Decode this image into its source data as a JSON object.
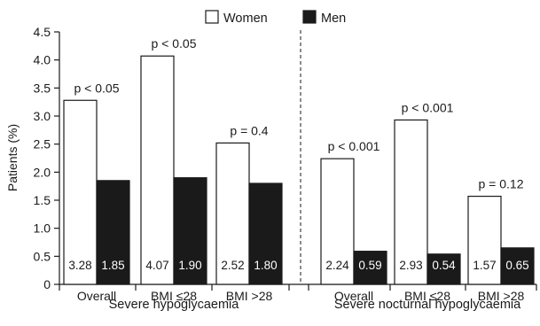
{
  "chart_data": {
    "type": "bar",
    "ylabel": "Patients (%)",
    "ylim": [
      0,
      4.5
    ],
    "yticks": [
      "0",
      "0.5",
      "1.0",
      "1.5",
      "2.0",
      "2.5",
      "3.0",
      "3.5",
      "4.0",
      "4.5"
    ],
    "ytick_values": [
      0,
      0.5,
      1.0,
      1.5,
      2.0,
      2.5,
      3.0,
      3.5,
      4.0,
      4.5
    ],
    "legend": {
      "placement": "top",
      "items": [
        {
          "name": "Women",
          "color": "#ffffff"
        },
        {
          "name": "Men",
          "color": "#1a1a1a"
        }
      ]
    },
    "groups": [
      {
        "label": "Severe hypoglycaemia",
        "categories": [
          {
            "label": "Overall",
            "women": 3.28,
            "men": 1.85,
            "women_label": "3.28",
            "men_label": "1.85",
            "p": "p < 0.05"
          },
          {
            "label": "BMI ≤28",
            "women": 4.07,
            "men": 1.9,
            "women_label": "4.07",
            "men_label": "1.90",
            "p": "p < 0.05"
          },
          {
            "label": "BMI >28",
            "women": 2.52,
            "men": 1.8,
            "women_label": "2.52",
            "men_label": "1.80",
            "p": "p = 0.4"
          }
        ]
      },
      {
        "label": "Severe nocturnal hypoglycaemia",
        "categories": [
          {
            "label": "Overall",
            "women": 2.24,
            "men": 0.59,
            "women_label": "2.24",
            "men_label": "0.59",
            "p": "p < 0.001"
          },
          {
            "label": "BMI ≤28",
            "women": 2.93,
            "men": 0.54,
            "women_label": "2.93",
            "men_label": "0.54",
            "p": "p < 0.001"
          },
          {
            "label": "BMI >28",
            "women": 1.57,
            "men": 0.65,
            "women_label": "1.57",
            "men_label": "0.65",
            "p": "p = 0.12"
          }
        ]
      }
    ],
    "colors": {
      "women_fill": "#ffffff",
      "men_fill": "#1a1a1a",
      "stroke": "#1a1a1a"
    }
  }
}
